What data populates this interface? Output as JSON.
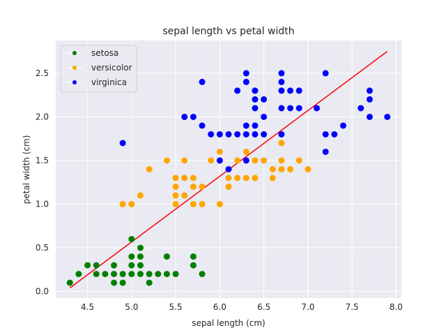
{
  "chart_data": {
    "type": "scatter",
    "title": "sepal length vs petal width",
    "xlabel": "sepal length (cm)",
    "ylabel": "petal width  (cm)",
    "xlim": [
      4.14,
      8.06
    ],
    "ylim": [
      -0.075,
      2.875
    ],
    "xticks": [
      "4.5",
      "5.0",
      "5.5",
      "6.0",
      "6.5",
      "7.0",
      "7.5",
      "8.0"
    ],
    "yticks": [
      "0.0",
      "0.5",
      "1.0",
      "1.5",
      "2.0",
      "2.5"
    ],
    "grid": true,
    "background": "#eaeaf2",
    "legend_position": "top-left",
    "series": [
      {
        "name": "setosa",
        "color": "#008000",
        "points": [
          [
            4.3,
            0.1
          ],
          [
            4.4,
            0.2
          ],
          [
            4.5,
            0.3
          ],
          [
            4.6,
            0.2
          ],
          [
            4.6,
            0.3
          ],
          [
            4.7,
            0.2
          ],
          [
            4.8,
            0.1
          ],
          [
            4.8,
            0.2
          ],
          [
            4.8,
            0.3
          ],
          [
            4.9,
            0.1
          ],
          [
            4.9,
            0.2
          ],
          [
            5.0,
            0.2
          ],
          [
            5.0,
            0.3
          ],
          [
            5.0,
            0.4
          ],
          [
            5.0,
            0.6
          ],
          [
            5.1,
            0.2
          ],
          [
            5.1,
            0.3
          ],
          [
            5.1,
            0.4
          ],
          [
            5.1,
            0.5
          ],
          [
            5.2,
            0.1
          ],
          [
            5.2,
            0.2
          ],
          [
            5.3,
            0.2
          ],
          [
            5.4,
            0.2
          ],
          [
            5.4,
            0.4
          ],
          [
            5.5,
            0.2
          ],
          [
            5.7,
            0.3
          ],
          [
            5.7,
            0.4
          ],
          [
            5.8,
            0.2
          ]
        ]
      },
      {
        "name": "versicolor",
        "color": "#ffa500",
        "points": [
          [
            4.9,
            1.0
          ],
          [
            5.0,
            1.0
          ],
          [
            5.1,
            1.1
          ],
          [
            5.2,
            1.4
          ],
          [
            5.4,
            1.5
          ],
          [
            5.5,
            1.0
          ],
          [
            5.5,
            1.1
          ],
          [
            5.5,
            1.2
          ],
          [
            5.5,
            1.3
          ],
          [
            5.6,
            1.1
          ],
          [
            5.6,
            1.3
          ],
          [
            5.6,
            1.5
          ],
          [
            5.7,
            1.0
          ],
          [
            5.7,
            1.2
          ],
          [
            5.7,
            1.3
          ],
          [
            5.8,
            1.0
          ],
          [
            5.8,
            1.2
          ],
          [
            5.9,
            1.5
          ],
          [
            6.0,
            1.0
          ],
          [
            6.0,
            1.5
          ],
          [
            6.0,
            1.6
          ],
          [
            6.1,
            1.2
          ],
          [
            6.1,
            1.3
          ],
          [
            6.1,
            1.4
          ],
          [
            6.2,
            1.3
          ],
          [
            6.2,
            1.5
          ],
          [
            6.3,
            1.3
          ],
          [
            6.3,
            1.5
          ],
          [
            6.3,
            1.6
          ],
          [
            6.4,
            1.3
          ],
          [
            6.4,
            1.5
          ],
          [
            6.5,
            1.5
          ],
          [
            6.6,
            1.3
          ],
          [
            6.6,
            1.4
          ],
          [
            6.7,
            1.4
          ],
          [
            6.7,
            1.5
          ],
          [
            6.7,
            1.7
          ],
          [
            6.8,
            1.4
          ],
          [
            6.9,
            1.5
          ],
          [
            7.0,
            1.4
          ]
        ]
      },
      {
        "name": "virginica",
        "color": "#0000ff",
        "points": [
          [
            4.9,
            1.7
          ],
          [
            5.6,
            2.0
          ],
          [
            5.7,
            2.0
          ],
          [
            5.8,
            1.9
          ],
          [
            5.8,
            2.4
          ],
          [
            5.9,
            1.8
          ],
          [
            6.0,
            1.8
          ],
          [
            6.0,
            1.5
          ],
          [
            6.1,
            1.8
          ],
          [
            6.1,
            1.4
          ],
          [
            6.2,
            1.8
          ],
          [
            6.3,
            1.8
          ],
          [
            6.3,
            1.9
          ],
          [
            6.3,
            2.4
          ],
          [
            6.3,
            2.5
          ],
          [
            6.3,
            1.5
          ],
          [
            6.2,
            2.3
          ],
          [
            6.4,
            1.8
          ],
          [
            6.4,
            1.9
          ],
          [
            6.4,
            2.1
          ],
          [
            6.4,
            2.2
          ],
          [
            6.4,
            2.3
          ],
          [
            6.5,
            1.8
          ],
          [
            6.5,
            2.0
          ],
          [
            6.5,
            2.2
          ],
          [
            6.7,
            1.8
          ],
          [
            6.7,
            2.1
          ],
          [
            6.7,
            2.3
          ],
          [
            6.7,
            2.4
          ],
          [
            6.7,
            2.5
          ],
          [
            6.8,
            2.1
          ],
          [
            6.8,
            2.3
          ],
          [
            6.9,
            2.1
          ],
          [
            6.9,
            2.3
          ],
          [
            7.1,
            2.1
          ],
          [
            7.2,
            1.6
          ],
          [
            7.2,
            1.8
          ],
          [
            7.2,
            2.5
          ],
          [
            7.3,
            1.8
          ],
          [
            7.4,
            1.9
          ],
          [
            7.6,
            2.1
          ],
          [
            7.7,
            2.0
          ],
          [
            7.7,
            2.2
          ],
          [
            7.7,
            2.3
          ],
          [
            7.9,
            2.0
          ]
        ]
      }
    ],
    "fit_line": {
      "color": "#ff0000",
      "points": [
        [
          4.3,
          0.04
        ],
        [
          7.9,
          2.75
        ]
      ]
    }
  }
}
